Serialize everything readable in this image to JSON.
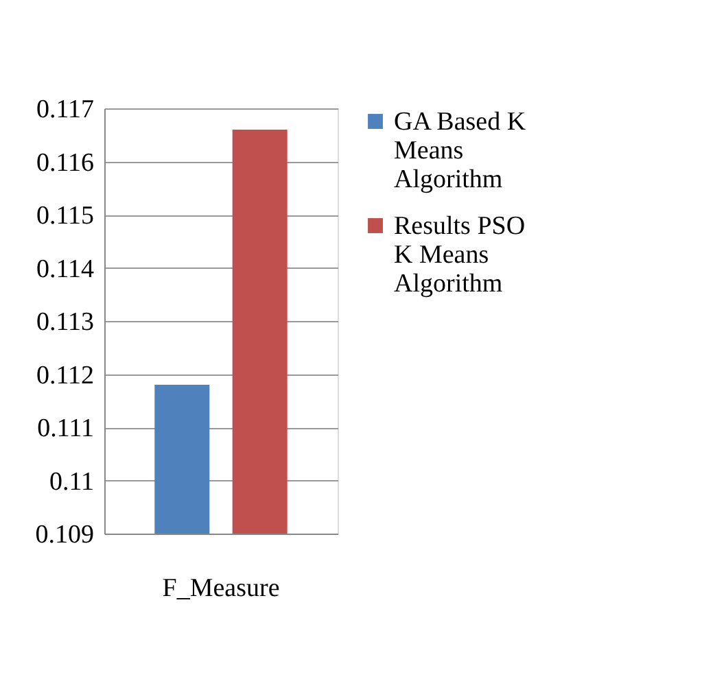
{
  "chart_data": {
    "type": "bar",
    "categories": [
      "F_Measure"
    ],
    "series": [
      {
        "name": "GA Based K Means Algorithm",
        "color": "#4f81bd",
        "values": [
          0.1118
        ]
      },
      {
        "name": "Results PSO K Means Algorithm",
        "color": "#c0504d",
        "values": [
          0.1166
        ]
      }
    ],
    "ylim": [
      0.109,
      0.117
    ],
    "yticks": [
      0.109,
      0.11,
      0.111,
      0.112,
      0.113,
      0.114,
      0.115,
      0.116,
      0.117
    ],
    "grid": "y",
    "legend": "right"
  }
}
